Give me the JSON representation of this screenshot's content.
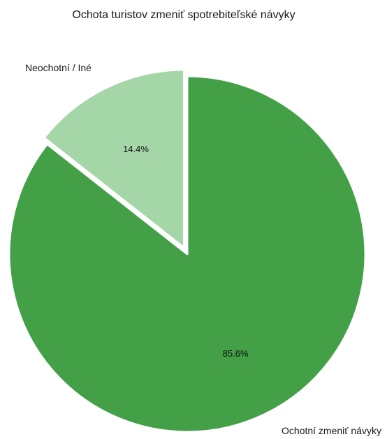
{
  "chart_data": {
    "type": "pie",
    "title": "Ochota turistov zmeniť spotrebiteľské návyky",
    "legend": "none",
    "slices": [
      {
        "label": "Ochotní zmeniť návyky",
        "value": 85.6,
        "value_label": "85.6%",
        "color": "#43a047",
        "exploded": false
      },
      {
        "label": "Neochotní / Iné",
        "value": 14.4,
        "value_label": "14.4%",
        "color": "#a5d6a7",
        "exploded": true
      }
    ]
  }
}
